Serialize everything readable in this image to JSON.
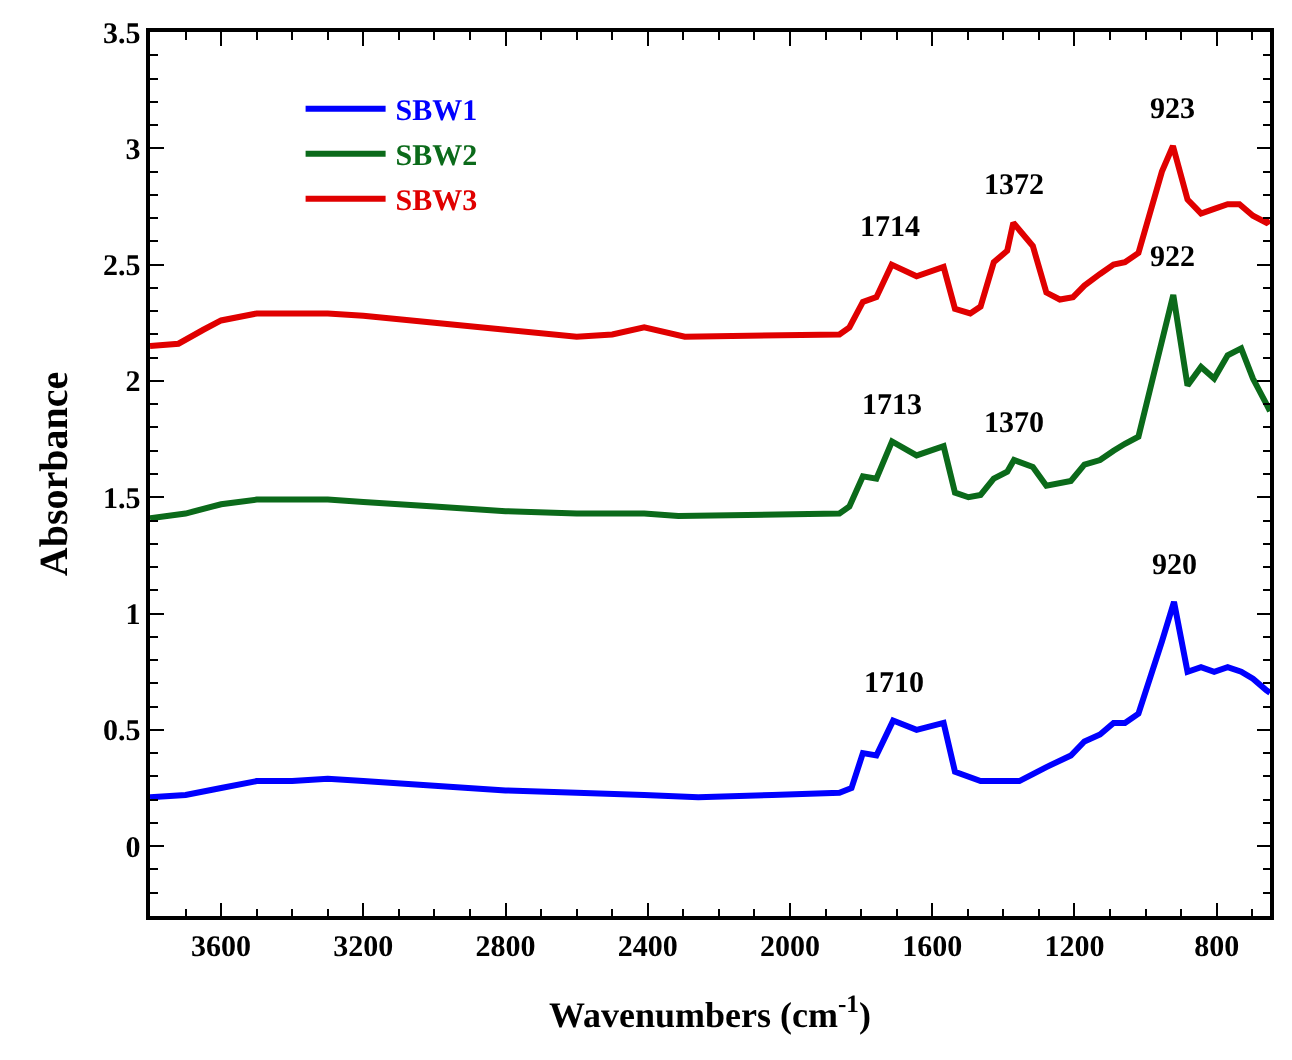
{
  "chart_data": {
    "type": "line",
    "xlabel": "Wavenumbers (cm$^{-1}$)",
    "ylabel": "Absorbance",
    "xlim": [
      3800,
      650
    ],
    "xticks": [
      3600,
      3200,
      2800,
      2400,
      2000,
      1600,
      1200,
      800
    ],
    "ylim": [
      -0.3,
      3.5
    ],
    "yticks": [
      0,
      0.5,
      1,
      1.5,
      2,
      2.5,
      3,
      3.5
    ],
    "legend": "top left",
    "marker": "none",
    "line_style": "solid",
    "series": [
      {
        "name": "SBW1",
        "color": "#0000ff",
        "x": [
          3800,
          3700,
          3600,
          3500,
          3400,
          3300,
          3200,
          3000,
          2800,
          2600,
          2410,
          2258,
          2050,
          1861,
          1827,
          1795,
          1757,
          1710,
          1644,
          1568,
          1536,
          1464,
          1355,
          1317,
          1279,
          1210,
          1172,
          1128,
          1090,
          1058,
          1020,
          954,
          920,
          882,
          844,
          807,
          769,
          731,
          698,
          660,
          650
        ],
        "values": [
          0.21,
          0.22,
          0.25,
          0.28,
          0.28,
          0.29,
          0.28,
          0.26,
          0.24,
          0.23,
          0.22,
          0.21,
          0.22,
          0.23,
          0.25,
          0.4,
          0.39,
          0.54,
          0.5,
          0.53,
          0.32,
          0.28,
          0.28,
          0.31,
          0.34,
          0.39,
          0.45,
          0.48,
          0.53,
          0.53,
          0.57,
          0.88,
          1.05,
          0.75,
          0.77,
          0.75,
          0.77,
          0.75,
          0.72,
          0.67,
          0.66
        ]
      },
      {
        "name": "SBW2",
        "color": "#0b6a1a",
        "x": [
          3800,
          3700,
          3600,
          3500,
          3300,
          3200,
          3000,
          2800,
          2600,
          2410,
          2314,
          1861,
          1833,
          1795,
          1757,
          1713,
          1644,
          1568,
          1536,
          1498,
          1464,
          1427,
          1389,
          1370,
          1317,
          1279,
          1210,
          1172,
          1128,
          1090,
          1058,
          1020,
          922,
          882,
          844,
          807,
          769,
          731,
          698,
          660,
          650
        ],
        "values": [
          1.41,
          1.43,
          1.47,
          1.49,
          1.49,
          1.48,
          1.46,
          1.44,
          1.43,
          1.43,
          1.42,
          1.43,
          1.46,
          1.59,
          1.58,
          1.74,
          1.68,
          1.72,
          1.52,
          1.5,
          1.51,
          1.58,
          1.61,
          1.66,
          1.63,
          1.55,
          1.57,
          1.64,
          1.66,
          1.7,
          1.73,
          1.76,
          2.37,
          1.98,
          2.06,
          2.01,
          2.11,
          2.14,
          2.01,
          1.9,
          1.87
        ]
      },
      {
        "name": "SBW3",
        "color": "#e00000",
        "x": [
          3800,
          3720,
          3650,
          3600,
          3500,
          3300,
          3200,
          3000,
          2800,
          2600,
          2500,
          2410,
          2296,
          1861,
          1833,
          1795,
          1757,
          1714,
          1644,
          1568,
          1536,
          1493,
          1464,
          1427,
          1389,
          1372,
          1317,
          1279,
          1241,
          1204,
          1172,
          1128,
          1090,
          1058,
          1020,
          954,
          923,
          882,
          844,
          807,
          769,
          736,
          698,
          660,
          650
        ],
        "values": [
          2.15,
          2.16,
          2.22,
          2.26,
          2.29,
          2.29,
          2.28,
          2.25,
          2.22,
          2.19,
          2.2,
          2.23,
          2.19,
          2.2,
          2.23,
          2.34,
          2.36,
          2.5,
          2.45,
          2.49,
          2.31,
          2.29,
          2.32,
          2.51,
          2.56,
          2.68,
          2.58,
          2.38,
          2.35,
          2.36,
          2.41,
          2.46,
          2.5,
          2.51,
          2.55,
          2.9,
          3.01,
          2.78,
          2.72,
          2.74,
          2.76,
          2.76,
          2.71,
          2.68,
          2.69
        ]
      }
    ],
    "annotations": [
      {
        "text": "1710",
        "x": 1710,
        "y": 0.54
      },
      {
        "text": "920",
        "x": 920,
        "y": 1.05
      },
      {
        "text": "1713",
        "x": 1713,
        "y": 1.74
      },
      {
        "text": "1370",
        "x": 1370,
        "y": 1.66
      },
      {
        "text": "922",
        "x": 922,
        "y": 2.37
      },
      {
        "text": "1714",
        "x": 1714,
        "y": 2.5
      },
      {
        "text": "1372",
        "x": 1372,
        "y": 2.68
      },
      {
        "text": "923",
        "x": 923,
        "y": 3.01
      }
    ]
  }
}
